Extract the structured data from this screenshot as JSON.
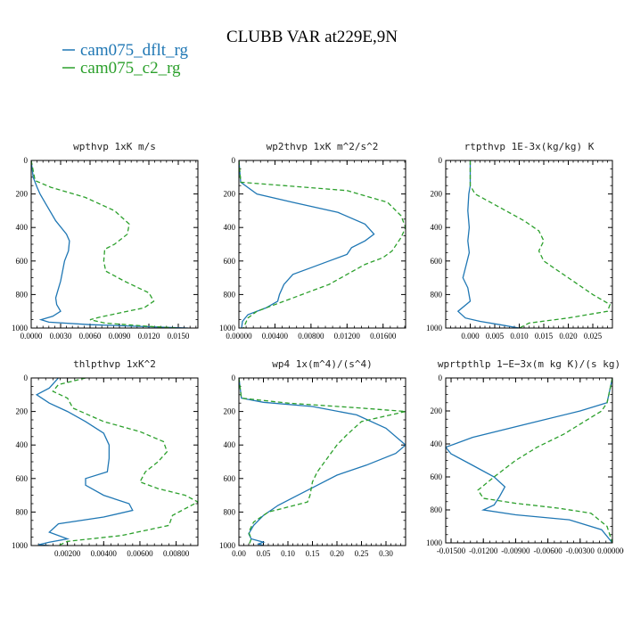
{
  "title": "CLUBB VAR at229E,9N",
  "colors": {
    "dflt": "#1f77b4",
    "c2": "#2ca02c"
  },
  "legend": [
    {
      "label": "cam075_dflt_rg",
      "color": "#1f77b4",
      "dash": ""
    },
    {
      "label": "cam075_c2_rg",
      "color": "#2ca02c",
      "dash": "5,3"
    }
  ],
  "chart_data": [
    {
      "type": "line",
      "title": "wpthvp  1xK m/s",
      "xlim": [
        0,
        0.017
      ],
      "ylim": [
        1000,
        0
      ],
      "xticks": [
        0,
        0.003,
        0.006,
        0.009,
        0.012,
        0.015
      ],
      "xtick_labels": [
        "0.0000",
        "0.0030",
        "0.0060",
        "0.0090",
        "0.0120",
        "0.0150"
      ],
      "yticks": [
        0,
        200,
        400,
        600,
        800,
        1000
      ],
      "series": [
        {
          "name": "cam075_dflt_rg",
          "color": "#1f77b4",
          "dash": "",
          "x": [
            0,
            0.0002,
            0.0006,
            0.0009,
            0.0015,
            0.0025,
            0.0036,
            0.0039,
            0.0038,
            0.0034,
            0.0032,
            0.003,
            0.0027,
            0.0025,
            0.0026,
            0.003,
            0.0022,
            0.001,
            0.0018,
            0.006,
            0.012,
            0.016
          ],
          "y": [
            0,
            100,
            160,
            200,
            260,
            360,
            440,
            480,
            540,
            600,
            660,
            720,
            780,
            820,
            860,
            900,
            930,
            950,
            965,
            980,
            992,
            1000
          ]
        },
        {
          "name": "cam075_c2_rg",
          "color": "#2ca02c",
          "dash": "5,3",
          "x": [
            0,
            0.0004,
            0.002,
            0.0055,
            0.0085,
            0.01,
            0.0098,
            0.0085,
            0.0075,
            0.0074,
            0.0076,
            0.0095,
            0.012,
            0.0125,
            0.0115,
            0.009,
            0.007,
            0.006,
            0.0075,
            0.012,
            0.015
          ],
          "y": [
            0,
            120,
            160,
            220,
            300,
            380,
            440,
            500,
            530,
            600,
            660,
            720,
            790,
            840,
            880,
            910,
            935,
            950,
            970,
            990,
            1000
          ]
        }
      ]
    },
    {
      "type": "line",
      "title": "wp2thvp  1xK m^2/s^2",
      "xlim": [
        0,
        0.0185
      ],
      "ylim": [
        1000,
        0
      ],
      "xticks": [
        0,
        0.004,
        0.008,
        0.012,
        0.016
      ],
      "xtick_labels": [
        "0.00000",
        "0.00400",
        "0.00800",
        "0.01200",
        "0.01600"
      ],
      "yticks": [
        0,
        200,
        400,
        600,
        800,
        1000
      ],
      "series": [
        {
          "name": "cam075_dflt_rg",
          "color": "#1f77b4",
          "dash": "",
          "x": [
            0,
            0.0002,
            0.002,
            0.006,
            0.011,
            0.014,
            0.015,
            0.014,
            0.0125,
            0.012,
            0.01,
            0.008,
            0.006,
            0.005,
            0.0045,
            0.0043,
            0.003,
            0.001,
            0.0004,
            0.0003
          ],
          "y": [
            0,
            130,
            200,
            250,
            310,
            380,
            440,
            480,
            520,
            560,
            600,
            640,
            680,
            740,
            800,
            840,
            880,
            920,
            960,
            1000
          ]
        },
        {
          "name": "cam075_c2_rg",
          "color": "#2ca02c",
          "dash": "5,3",
          "x": [
            0,
            0.0002,
            0.005,
            0.012,
            0.0165,
            0.018,
            0.0185,
            0.018,
            0.017,
            0.016,
            0.014,
            0.012,
            0.01,
            0.008,
            0.006,
            0.004,
            0.002,
            0.001,
            0.0005
          ],
          "y": [
            0,
            130,
            150,
            180,
            250,
            330,
            400,
            460,
            540,
            580,
            620,
            680,
            740,
            780,
            820,
            860,
            900,
            940,
            1000
          ]
        }
      ]
    },
    {
      "type": "line",
      "title": "rtpthvp  1E-3x(kg/kg) K",
      "xlim": [
        -0.005,
        0.029
      ],
      "ylim": [
        1000,
        0
      ],
      "xticks": [
        0,
        0.005,
        0.01,
        0.015,
        0.02,
        0.025
      ],
      "xtick_labels": [
        "0.000",
        "0.005",
        "0.010",
        "0.015",
        "0.020",
        "0.025"
      ],
      "yticks": [
        0,
        200,
        400,
        600,
        800,
        1000
      ],
      "series": [
        {
          "name": "cam075_dflt_rg",
          "color": "#1f77b4",
          "dash": "",
          "x": [
            0,
            0,
            -0.0003,
            -0.0005,
            -0.0002,
            -0.0005,
            -0.0002,
            -0.0008,
            -0.0015,
            -0.0005,
            0,
            -0.0025,
            -0.001,
            0.002,
            0.006,
            0.01
          ],
          "y": [
            0,
            150,
            200,
            300,
            400,
            480,
            550,
            620,
            700,
            760,
            840,
            900,
            940,
            960,
            980,
            1000
          ]
        },
        {
          "name": "cam075_c2_rg",
          "color": "#2ca02c",
          "dash": "5,3",
          "x": [
            0,
            0,
            0.001,
            0.006,
            0.011,
            0.014,
            0.015,
            0.014,
            0.015,
            0.02,
            0.025,
            0.0285,
            0.028,
            0.02,
            0.012,
            0.01
          ],
          "y": [
            0,
            150,
            200,
            280,
            360,
            420,
            480,
            540,
            600,
            700,
            800,
            860,
            900,
            940,
            970,
            1000
          ]
        }
      ]
    },
    {
      "type": "line",
      "title": "thlpthvp  1xK^2",
      "xlim": [
        0,
        0.0092
      ],
      "ylim": [
        1000,
        0
      ],
      "xticks": [
        0.002,
        0.004,
        0.006,
        0.008
      ],
      "xtick_labels": [
        "0.00200",
        "0.00400",
        "0.00600",
        "0.00800"
      ],
      "yticks": [
        0,
        200,
        400,
        600,
        800,
        1000
      ],
      "series": [
        {
          "name": "cam075_dflt_rg",
          "color": "#1f77b4",
          "dash": "",
          "x": [
            0.0015,
            0.001,
            0.0003,
            0.001,
            0.002,
            0.003,
            0.004,
            0.0043,
            0.0043,
            0.0042,
            0.003,
            0.003,
            0.004,
            0.0054,
            0.0056,
            0.004,
            0.0015,
            0.001,
            0.002,
            0.001,
            0.0004,
            0.001
          ],
          "y": [
            0,
            60,
            100,
            150,
            200,
            260,
            330,
            400,
            480,
            560,
            600,
            640,
            700,
            750,
            790,
            830,
            870,
            920,
            960,
            980,
            995,
            1000
          ]
        },
        {
          "name": "cam075_c2_rg",
          "color": "#2ca02c",
          "dash": "5,3",
          "x": [
            0.003,
            0.0015,
            0.0012,
            0.002,
            0.0023,
            0.004,
            0.006,
            0.0073,
            0.0075,
            0.007,
            0.0063,
            0.006,
            0.007,
            0.0085,
            0.0092,
            0.0085,
            0.0078,
            0.0076,
            0.005,
            0.002,
            0.0015
          ],
          "y": [
            0,
            40,
            80,
            120,
            180,
            260,
            320,
            380,
            440,
            500,
            560,
            620,
            660,
            700,
            740,
            780,
            820,
            880,
            940,
            975,
            1000
          ]
        }
      ]
    },
    {
      "type": "line",
      "title": "wp4  1x(m^4)/(s^4)",
      "xlim": [
        0,
        0.34
      ],
      "ylim": [
        1000,
        0
      ],
      "xticks": [
        0,
        0.05,
        0.1,
        0.15,
        0.2,
        0.25,
        0.3
      ],
      "xtick_labels": [
        "0.00",
        "0.05",
        "0.10",
        "0.15",
        "0.20",
        "0.25",
        "0.30"
      ],
      "yticks": [
        0,
        200,
        400,
        600,
        800,
        1000
      ],
      "series": [
        {
          "name": "cam075_dflt_rg",
          "color": "#1f77b4",
          "dash": "",
          "x": [
            0,
            0.005,
            0.05,
            0.15,
            0.24,
            0.3,
            0.34,
            0.32,
            0.26,
            0.2,
            0.16,
            0.12,
            0.08,
            0.05,
            0.03,
            0.02,
            0.025,
            0.05,
            0.04,
            0.05
          ],
          "y": [
            0,
            120,
            145,
            170,
            220,
            300,
            400,
            450,
            520,
            580,
            640,
            700,
            760,
            820,
            880,
            930,
            960,
            980,
            990,
            1000
          ]
        },
        {
          "name": "cam075_c2_rg",
          "color": "#2ca02c",
          "dash": "5,3",
          "x": [
            0,
            0.005,
            0.1,
            0.25,
            0.34,
            0.25,
            0.22,
            0.2,
            0.18,
            0.16,
            0.15,
            0.145,
            0.14,
            0.1,
            0.06,
            0.03,
            0.02,
            0.025,
            0.02
          ],
          "y": [
            0,
            120,
            150,
            180,
            200,
            260,
            340,
            400,
            480,
            560,
            620,
            700,
            740,
            770,
            800,
            860,
            920,
            960,
            1000
          ]
        }
      ]
    },
    {
      "type": "line",
      "title": "wprtpthlp  1−E−3x(m kg K)/(s kg)",
      "xlim": [
        -0.0155,
        0
      ],
      "ylim": [
        1000,
        0
      ],
      "xticks": [
        -0.015,
        -0.012,
        -0.009,
        -0.006,
        -0.003,
        0
      ],
      "xtick_labels": [
        "-0.01500",
        "-0.01200",
        "-0.00900",
        "-0.00600",
        "-0.00300",
        "0.000000"
      ],
      "yticks": [
        0,
        200,
        400,
        600,
        800,
        1000
      ],
      "series": [
        {
          "name": "cam075_dflt_rg",
          "color": "#1f77b4",
          "dash": "",
          "x": [
            0,
            -0.0005,
            -0.003,
            -0.008,
            -0.013,
            -0.0155,
            -0.015,
            -0.013,
            -0.011,
            -0.01,
            -0.0105,
            -0.011,
            -0.012,
            -0.009,
            -0.004,
            -0.001,
            0
          ],
          "y": [
            0,
            150,
            200,
            280,
            360,
            420,
            460,
            530,
            600,
            660,
            720,
            770,
            800,
            830,
            860,
            920,
            1000
          ]
        },
        {
          "name": "cam075_c2_rg",
          "color": "#2ca02c",
          "dash": "5,3",
          "x": [
            0,
            -0.0005,
            -0.001,
            -0.0025,
            -0.0045,
            -0.007,
            -0.009,
            -0.011,
            -0.0125,
            -0.012,
            -0.009,
            -0.005,
            -0.002,
            -0.0005,
            0
          ],
          "y": [
            0,
            150,
            200,
            260,
            340,
            420,
            500,
            600,
            680,
            730,
            760,
            790,
            820,
            900,
            1000
          ]
        }
      ]
    }
  ]
}
